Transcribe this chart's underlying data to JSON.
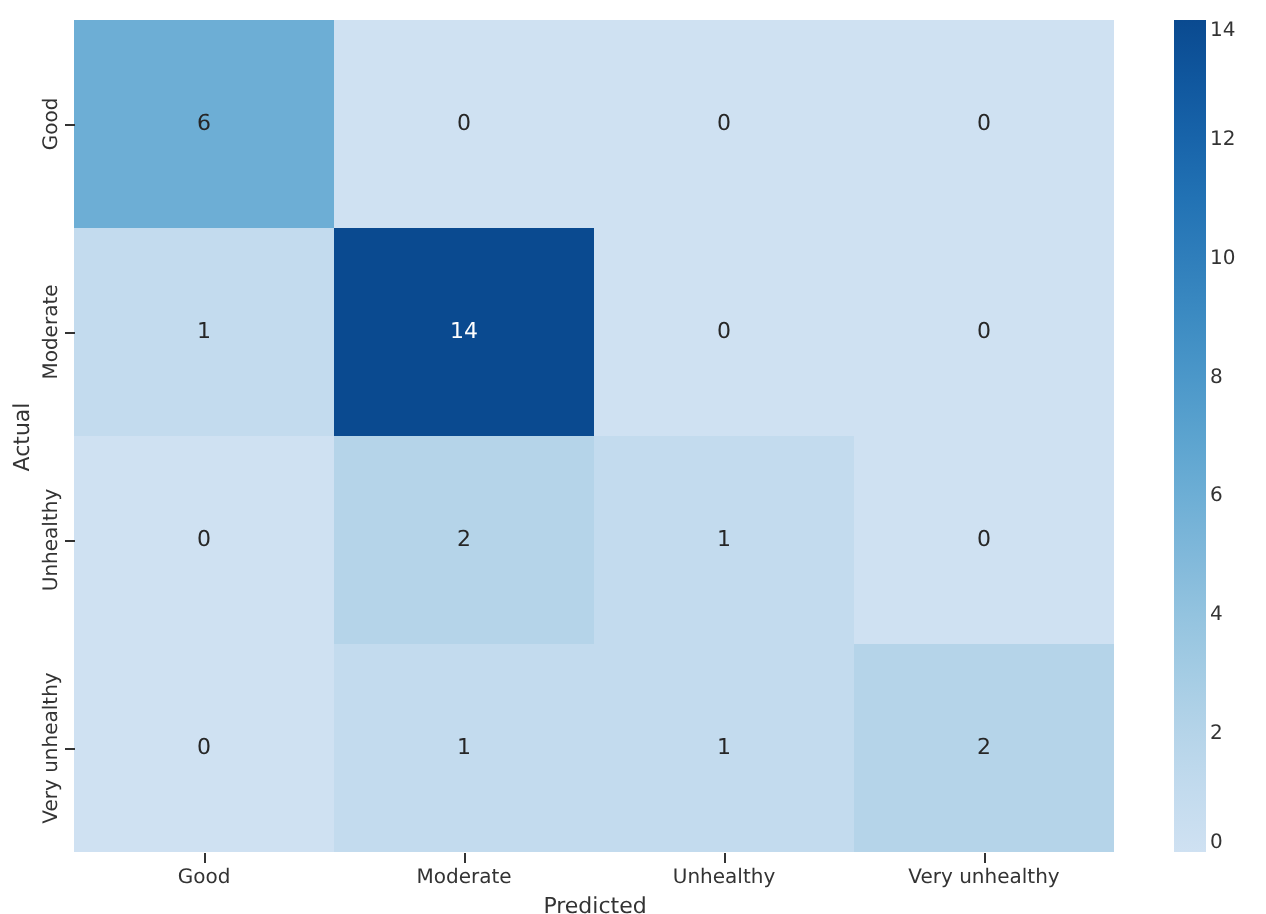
{
  "chart_data": {
    "type": "heatmap",
    "categories": [
      "Good",
      "Moderate",
      "Unhealthy",
      "Very unhealthy"
    ],
    "y_categories": [
      "Good",
      "Moderate",
      "Unhealthy",
      "Very unhealthy"
    ],
    "cells": [
      [
        6,
        0,
        0,
        0
      ],
      [
        1,
        14,
        0,
        0
      ],
      [
        0,
        2,
        1,
        0
      ],
      [
        0,
        1,
        1,
        2
      ]
    ],
    "xlabel": "Predicted",
    "ylabel": "Actual",
    "clim": [
      0,
      14
    ],
    "cticks": [
      0,
      2,
      4,
      6,
      8,
      10,
      12,
      14
    ],
    "data_labels": true
  }
}
